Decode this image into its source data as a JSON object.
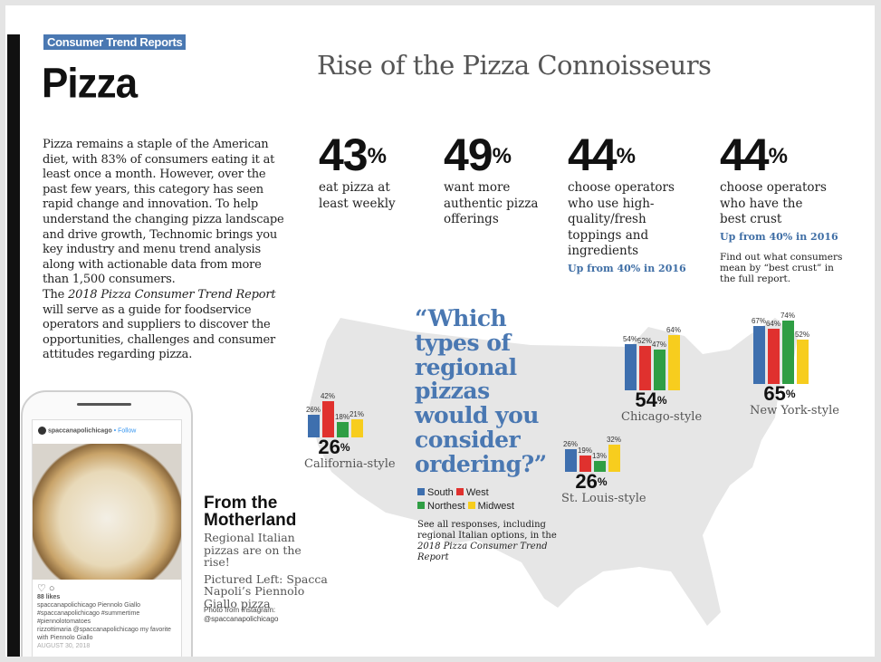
{
  "badge": "Consumer Trend Reports",
  "title": "Pizza",
  "intro": {
    "p1": "Pizza remains a staple of the American diet, with 83% of consumers eating it at least once a month. However, over the past few years, this category has seen rapid change and innovation. To help understand the changing pizza landscape and drive growth, Technomic brings you key industry and menu trend analysis along with actionable data from more than 1,500 consumers.",
    "p2_pre": "The ",
    "p2_italic": "2018 Pizza Consumer Trend Report",
    "p2_post": " will serve as a guide for foodservice operators and suppliers to discover the opportunities, challenges and consumer attitudes regarding pizza."
  },
  "heading": "Rise of the Pizza Connoisseurs",
  "stats": [
    {
      "value": "43",
      "unit": "%",
      "label": "eat pizza at least weekly"
    },
    {
      "value": "49",
      "unit": "%",
      "label": "want more authentic pizza offerings"
    },
    {
      "value": "44",
      "unit": "%",
      "label": "choose operators who use high-quality/fresh toppings and ingredients",
      "note": "Up from 40% in 2016"
    },
    {
      "value": "44",
      "unit": "%",
      "label": "choose operators who have the best crust",
      "note": "Up from 40% in 2016",
      "extra": "Find out what consumers mean by “best crust” in the full report."
    }
  ],
  "question": "“Which types of regional pizzas would you consider ordering?”",
  "legend": [
    {
      "name": "South",
      "color": "#3e6fae"
    },
    {
      "name": "West",
      "color": "#e0312e"
    },
    {
      "name": "Northest",
      "color": "#2f9e44"
    },
    {
      "name": "Midwest",
      "color": "#f7cd1e"
    }
  ],
  "see_all": {
    "pre": "See all responses, including regional Italian options, in the ",
    "italic": "2018 Pizza Consumer Trend Report"
  },
  "chart_data": [
    {
      "type": "bar",
      "name": "California-style",
      "total": "26",
      "categories": [
        "South",
        "West",
        "Northest",
        "Midwest"
      ],
      "values": [
        26,
        42,
        18,
        21
      ]
    },
    {
      "type": "bar",
      "name": "Chicago-style",
      "total": "54",
      "categories": [
        "South",
        "West",
        "Northest",
        "Midwest"
      ],
      "values": [
        54,
        52,
        47,
        64
      ]
    },
    {
      "type": "bar",
      "name": "St. Louis-style",
      "total": "26",
      "categories": [
        "South",
        "West",
        "Northest",
        "Midwest"
      ],
      "values": [
        26,
        19,
        13,
        32
      ]
    },
    {
      "type": "bar",
      "name": "New York-style",
      "total": "65",
      "categories": [
        "South",
        "West",
        "Northest",
        "Midwest"
      ],
      "values": [
        67,
        64,
        74,
        52
      ]
    }
  ],
  "sidebar": {
    "title": "From the Motherland",
    "sub1": "Regional Italian pizzas are on the rise!",
    "sub2": "Pictured Left: Spacca Napoli’s Piennolo Giallo pizza",
    "photo1": "Photo from Instagram:",
    "photo2": "@spaccanapolichicago"
  },
  "instagram": {
    "account": "spaccanapolichicago",
    "follow": "• Follow",
    "likes": "88 likes",
    "caption": "spaccanapolichicago Piennolo Giallo #spaccanapolichicago #summertime #piennolotomatoes",
    "comment": "rizzottimaria @spaccanapolichicago my favorite with Piennolo Giallo",
    "date": "AUGUST 30, 2018"
  }
}
